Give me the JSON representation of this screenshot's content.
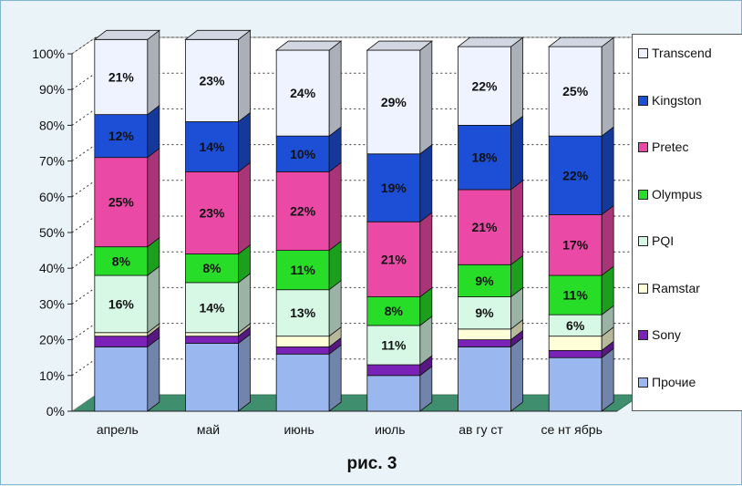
{
  "caption": "рис. 3",
  "colors": {
    "background": "#e9f3f8",
    "floor": "#3f8f6e"
  },
  "chart_data": {
    "type": "bar",
    "stacked": true,
    "percent_stacked": true,
    "three_d": true,
    "categories": [
      "апрель",
      "май",
      "июнь",
      "июль",
      "ав гу ст",
      "се нт ябрь"
    ],
    "y_ticks": [
      "0%",
      "10%",
      "20%",
      "30%",
      "40%",
      "50%",
      "60%",
      "70%",
      "80%",
      "90%",
      "100%"
    ],
    "ylim": [
      0,
      100
    ],
    "grid": "horizontal dotted",
    "legend_position": "right",
    "series": [
      {
        "name": "Прочие",
        "color": "#9bb7ef",
        "values": [
          18,
          19,
          16,
          10,
          18,
          15
        ],
        "labels": [
          "",
          "",
          "",
          "",
          "",
          ""
        ]
      },
      {
        "name": "Sony",
        "color": "#7a22b8",
        "values": [
          3,
          2,
          2,
          3,
          2,
          2
        ],
        "labels": [
          "",
          "",
          "",
          "",
          "",
          ""
        ]
      },
      {
        "name": "Ramstar",
        "color": "#ffffd8",
        "values": [
          1,
          1,
          3,
          0,
          3,
          4
        ],
        "labels": [
          "",
          "",
          "",
          "",
          "",
          ""
        ]
      },
      {
        "name": "PQI",
        "color": "#d6f8e4",
        "values": [
          16,
          14,
          13,
          11,
          9,
          6
        ],
        "labels": [
          "16%",
          "14%",
          "13%",
          "11%",
          "9%",
          "6%"
        ]
      },
      {
        "name": "Olympus",
        "color": "#27dd27",
        "values": [
          8,
          8,
          11,
          8,
          9,
          11
        ],
        "labels": [
          "8%",
          "8%",
          "11%",
          "8%",
          "9%",
          "11%"
        ]
      },
      {
        "name": "Pretec",
        "color": "#ea4aa6",
        "values": [
          25,
          23,
          22,
          21,
          21,
          17
        ],
        "labels": [
          "25%",
          "23%",
          "22%",
          "21%",
          "21%",
          "17%"
        ]
      },
      {
        "name": "Kingston",
        "color": "#1d4fd6",
        "values": [
          12,
          14,
          10,
          19,
          18,
          22
        ],
        "labels": [
          "12%",
          "14%",
          "10%",
          "19%",
          "18%",
          "22%"
        ]
      },
      {
        "name": "Transcend",
        "color": "#eef3ff",
        "values": [
          21,
          23,
          24,
          29,
          22,
          25
        ],
        "labels": [
          "21%",
          "23%",
          "24%",
          "29%",
          "22%",
          "25%"
        ]
      }
    ]
  }
}
